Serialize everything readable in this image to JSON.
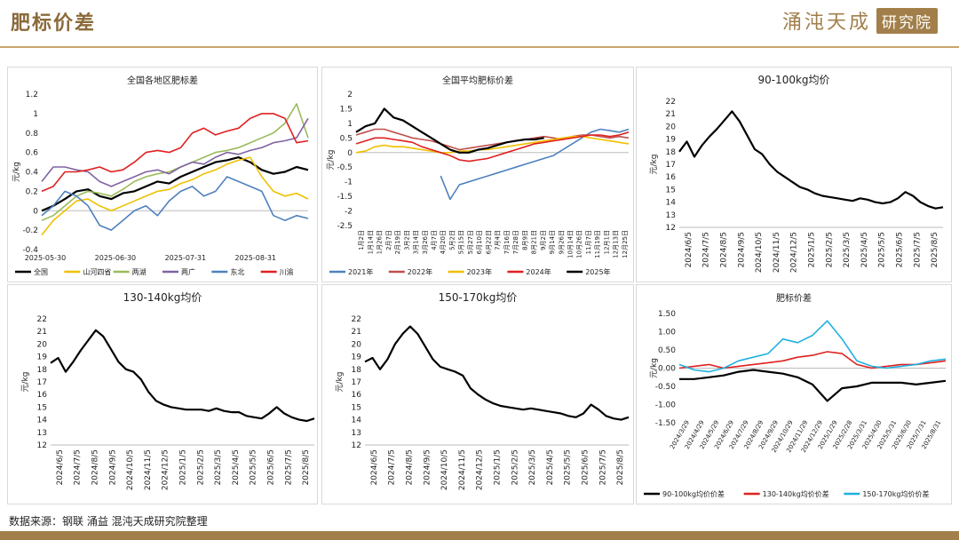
{
  "header": {
    "title": "肥标价差",
    "brand_main": "涌沌天成",
    "brand_sub": "研究院"
  },
  "footer": {
    "source": "数据来源：钢联 涌益 混沌天成研究院整理"
  },
  "chart_data": [
    {
      "id": "regional",
      "type": "line",
      "title": "全国各地区肥标差",
      "ylabel": "元/kg",
      "ylim": [
        -0.4,
        1.2
      ],
      "yticks": [
        "1.2",
        "1",
        "0.8",
        "0.6",
        "0.4",
        "0.2",
        "0",
        "-0.2",
        "-0.4"
      ],
      "xticks": [
        "2025-05-30",
        "2025-06-30",
        "2025-07-31",
        "2025-08-31"
      ],
      "series": [
        {
          "name": "全国",
          "color": "#000000",
          "values": [
            0,
            0.05,
            0.12,
            0.2,
            0.22,
            0.15,
            0.12,
            0.18,
            0.2,
            0.25,
            0.3,
            0.28,
            0.35,
            0.4,
            0.45,
            0.5,
            0.52,
            0.55,
            0.5,
            0.42,
            0.38,
            0.4,
            0.45,
            0.42
          ]
        },
        {
          "name": "山河四省",
          "color": "#f0c000",
          "values": [
            -0.25,
            -0.1,
            0.0,
            0.1,
            0.12,
            0.05,
            0.0,
            0.05,
            0.1,
            0.15,
            0.2,
            0.22,
            0.28,
            0.32,
            0.38,
            0.42,
            0.48,
            0.52,
            0.55,
            0.35,
            0.2,
            0.15,
            0.18,
            0.12
          ]
        },
        {
          "name": "两湖",
          "color": "#9bbb59",
          "values": [
            -0.1,
            -0.05,
            0.05,
            0.15,
            0.2,
            0.18,
            0.15,
            0.22,
            0.3,
            0.35,
            0.38,
            0.4,
            0.45,
            0.5,
            0.55,
            0.6,
            0.62,
            0.65,
            0.7,
            0.75,
            0.8,
            0.9,
            1.1,
            0.75
          ]
        },
        {
          "name": "两广",
          "color": "#8064a2",
          "values": [
            0.3,
            0.45,
            0.45,
            0.42,
            0.4,
            0.3,
            0.25,
            0.3,
            0.35,
            0.4,
            0.42,
            0.38,
            0.45,
            0.5,
            0.48,
            0.55,
            0.6,
            0.58,
            0.62,
            0.65,
            0.7,
            0.72,
            0.75,
            0.95
          ]
        },
        {
          "name": "东北",
          "color": "#4f81bd",
          "values": [
            -0.05,
            0.05,
            0.2,
            0.15,
            0.05,
            -0.15,
            -0.2,
            -0.1,
            0.0,
            0.05,
            -0.05,
            0.1,
            0.2,
            0.25,
            0.15,
            0.2,
            0.35,
            0.3,
            0.25,
            0.2,
            -0.05,
            -0.1,
            -0.05,
            -0.08
          ]
        },
        {
          "name": "川渝",
          "color": "#e02020",
          "values": [
            0.2,
            0.25,
            0.4,
            0.4,
            0.42,
            0.45,
            0.4,
            0.42,
            0.5,
            0.6,
            0.62,
            0.6,
            0.65,
            0.8,
            0.85,
            0.78,
            0.82,
            0.85,
            0.95,
            1.0,
            1.0,
            0.95,
            0.7,
            0.72
          ]
        }
      ]
    },
    {
      "id": "national",
      "type": "line",
      "title": "全国平均肥标价差",
      "ylabel": "元/kg",
      "ylim": [
        -2.5,
        2
      ],
      "yticks": [
        "2",
        "1.5",
        "1",
        "0.5",
        "0",
        "-0.5",
        "-1",
        "-1.5",
        "-2",
        "-2.5"
      ],
      "xticks": [
        "1月2日",
        "1月14日",
        "1月26日",
        "2月7日",
        "2月19日",
        "3月2日",
        "3月14日",
        "3月26日",
        "4月7日",
        "4月20日",
        "5月2日",
        "5月15日",
        "5月27日",
        "6月10日",
        "6月22日",
        "7月4日",
        "7月16日",
        "7月28日",
        "8月9日",
        "8月21日",
        "9月2日",
        "9月14日",
        "9月26日",
        "10月14日",
        "10月26日",
        "11月7日",
        "11月19日",
        "12月1日",
        "12月13日",
        "12月25日"
      ],
      "series": [
        {
          "name": "2021年",
          "color": "#4f81bd",
          "values": [
            null,
            null,
            null,
            null,
            null,
            null,
            null,
            null,
            null,
            -0.8,
            -1.6,
            -1.1,
            -1.0,
            -0.9,
            -0.8,
            -0.7,
            -0.6,
            -0.5,
            -0.4,
            -0.3,
            -0.2,
            -0.1,
            0.1,
            0.3,
            0.5,
            0.7,
            0.8,
            0.75,
            0.7,
            0.8
          ]
        },
        {
          "name": "2022年",
          "color": "#c0504d",
          "values": [
            0.6,
            0.7,
            0.8,
            0.8,
            0.7,
            0.6,
            0.5,
            0.45,
            0.4,
            0.3,
            0.2,
            0.1,
            0.15,
            0.2,
            0.25,
            0.3,
            0.35,
            0.4,
            0.45,
            0.5,
            0.55,
            0.5,
            0.45,
            0.55,
            0.6,
            0.6,
            0.55,
            0.5,
            0.55,
            0.5
          ]
        },
        {
          "name": "2023年",
          "color": "#f0c000",
          "values": [
            0.0,
            0.05,
            0.2,
            0.25,
            0.2,
            0.2,
            0.15,
            0.1,
            0.05,
            0.0,
            0.0,
            0.05,
            0.05,
            0.1,
            0.1,
            0.15,
            0.2,
            0.25,
            0.3,
            0.35,
            0.4,
            0.45,
            0.5,
            0.55,
            0.55,
            0.5,
            0.45,
            0.4,
            0.35,
            0.3
          ]
        },
        {
          "name": "2024年",
          "color": "#e02020",
          "values": [
            0.3,
            0.4,
            0.5,
            0.5,
            0.45,
            0.4,
            0.35,
            0.2,
            0.1,
            0.0,
            -0.1,
            -0.25,
            -0.3,
            -0.25,
            -0.2,
            -0.1,
            0.0,
            0.1,
            0.2,
            0.3,
            0.35,
            0.4,
            0.45,
            0.5,
            0.55,
            0.6,
            0.6,
            0.55,
            0.6,
            0.7
          ]
        },
        {
          "name": "2025年",
          "color": "#000000",
          "values": [
            0.7,
            0.9,
            1.0,
            1.5,
            1.2,
            1.1,
            0.9,
            0.7,
            0.5,
            0.3,
            0.1,
            0.0,
            0.0,
            0.1,
            0.15,
            0.25,
            0.35,
            0.4,
            0.45,
            0.45,
            0.5,
            null,
            null,
            null,
            null,
            null,
            null,
            null,
            null,
            null
          ]
        }
      ]
    },
    {
      "id": "p90",
      "type": "line",
      "title": "90-100kg均价",
      "ylabel": "元/kg",
      "ylim": [
        12,
        22
      ],
      "yticks": [
        "22",
        "21",
        "20",
        "19",
        "18",
        "17",
        "16",
        "15",
        "14",
        "13",
        "12"
      ],
      "xticks": [
        "2024/6/5",
        "2024/7/5",
        "2024/8/5",
        "2024/9/5",
        "2024/10/5",
        "2024/11/5",
        "2024/12/5",
        "2025/1/5",
        "2025/2/5",
        "2025/3/5",
        "2025/4/5",
        "2025/5/5",
        "2025/6/5",
        "2025/7/5",
        "2025/8/5"
      ],
      "series": [
        {
          "name": "90-100kg",
          "color": "#000000",
          "values": [
            18.0,
            18.8,
            17.6,
            18.5,
            19.2,
            19.8,
            20.5,
            21.2,
            20.4,
            19.3,
            18.2,
            17.8,
            17.0,
            16.4,
            16.0,
            15.6,
            15.2,
            15.0,
            14.7,
            14.5,
            14.4,
            14.3,
            14.2,
            14.1,
            14.3,
            14.2,
            14.0,
            13.9,
            14.0,
            14.3,
            14.8,
            14.5,
            14.0,
            13.7,
            13.5,
            13.6
          ]
        }
      ]
    },
    {
      "id": "p130",
      "type": "line",
      "title": "130-140kg均价",
      "ylabel": "元/kg",
      "ylim": [
        12,
        22
      ],
      "yticks": [
        "22",
        "21",
        "20",
        "19",
        "18",
        "17",
        "16",
        "15",
        "14",
        "13",
        "12"
      ],
      "xticks": [
        "2024/6/5",
        "2024/7/5",
        "2024/8/5",
        "2024/9/5",
        "2024/10/5",
        "2024/11/5",
        "2024/12/5",
        "2025/1/5",
        "2025/2/5",
        "2025/3/5",
        "2025/4/5",
        "2025/5/5",
        "2025/6/5",
        "2025/7/5",
        "2025/8/5"
      ],
      "series": [
        {
          "name": "130-140kg",
          "color": "#000000",
          "values": [
            18.5,
            18.9,
            17.8,
            18.6,
            19.5,
            20.3,
            21.1,
            20.6,
            19.6,
            18.6,
            18.0,
            17.8,
            17.2,
            16.2,
            15.5,
            15.2,
            15.0,
            14.9,
            14.8,
            14.8,
            14.8,
            14.7,
            14.9,
            14.7,
            14.6,
            14.6,
            14.3,
            14.2,
            14.1,
            14.5,
            15.0,
            14.5,
            14.2,
            14.0,
            13.9,
            14.1
          ]
        }
      ]
    },
    {
      "id": "p150",
      "type": "line",
      "title": "150-170kg均价",
      "ylabel": "元/kg",
      "ylim": [
        12,
        22
      ],
      "yticks": [
        "22",
        "21",
        "20",
        "19",
        "18",
        "17",
        "16",
        "15",
        "14",
        "13",
        "12"
      ],
      "xticks": [
        "2024/6/5",
        "2024/7/5",
        "2024/8/5",
        "2024/9/5",
        "2024/10/5",
        "2024/11/5",
        "2024/12/5",
        "2025/1/5",
        "2025/2/5",
        "2025/3/5",
        "2025/4/5",
        "2025/5/5",
        "2025/6/5",
        "2025/7/5",
        "2025/8/5"
      ],
      "series": [
        {
          "name": "150-170kg",
          "color": "#000000",
          "values": [
            18.6,
            18.9,
            18.0,
            18.8,
            20.0,
            20.8,
            21.4,
            20.8,
            19.8,
            18.8,
            18.2,
            18.0,
            17.8,
            17.5,
            16.5,
            16.0,
            15.6,
            15.3,
            15.1,
            15.0,
            14.9,
            14.8,
            14.9,
            14.8,
            14.7,
            14.6,
            14.5,
            14.3,
            14.2,
            14.5,
            15.2,
            14.8,
            14.3,
            14.1,
            14.0,
            14.2
          ]
        }
      ]
    },
    {
      "id": "spread",
      "type": "line",
      "title": "肥标价差",
      "ylabel": "元/kg",
      "ylim": [
        -1.5,
        1.5
      ],
      "yticks": [
        "1.50",
        "1.00",
        "0.50",
        "0.00",
        "-0.50",
        "-1.00",
        "-1.50"
      ],
      "xticks": [
        "2024/3/29",
        "2024/4/29",
        "2024/5/29",
        "2024/6/29",
        "2024/7/29",
        "2024/8/29",
        "2024/9/29",
        "2024/10/29",
        "2024/11/29",
        "2024/12/29",
        "2025/1/29",
        "2025/2/28",
        "2025/3/31",
        "2025/4/30",
        "2025/5/31",
        "2025/6/30",
        "2025/7/31",
        "2025/8/31"
      ],
      "series": [
        {
          "name": "90-100kg均价价差",
          "color": "#000000",
          "values": [
            -0.3,
            -0.3,
            -0.25,
            -0.2,
            -0.1,
            -0.05,
            -0.1,
            -0.15,
            -0.25,
            -0.45,
            -0.9,
            -0.55,
            -0.5,
            -0.4,
            -0.4,
            -0.4,
            -0.45,
            -0.4,
            -0.35
          ]
        },
        {
          "name": "130-140kg均价价差",
          "color": "#e02020",
          "values": [
            0.0,
            0.05,
            0.1,
            0.0,
            0.05,
            0.1,
            0.15,
            0.2,
            0.3,
            0.35,
            0.45,
            0.4,
            0.1,
            0.0,
            0.05,
            0.1,
            0.1,
            0.15,
            0.2
          ]
        },
        {
          "name": "150-170kg均价价差",
          "color": "#1fb0e0",
          "values": [
            0.1,
            -0.05,
            -0.1,
            0.0,
            0.2,
            0.3,
            0.4,
            0.8,
            0.7,
            0.9,
            1.3,
            0.8,
            0.2,
            0.05,
            0.0,
            0.05,
            0.1,
            0.2,
            0.25
          ]
        }
      ]
    }
  ]
}
